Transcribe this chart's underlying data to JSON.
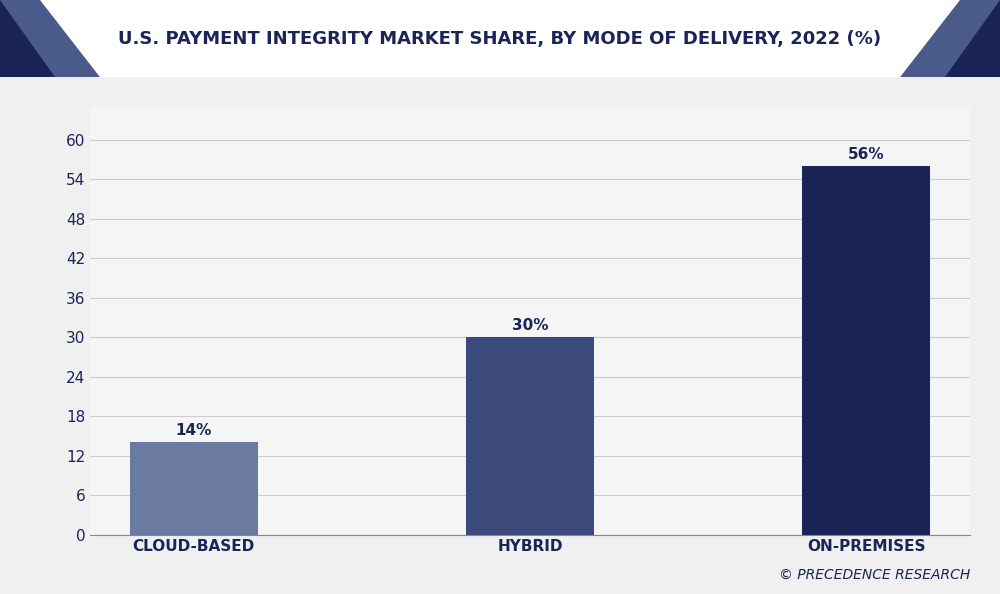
{
  "title": "U.S. PAYMENT INTEGRITY MARKET SHARE, BY MODE OF DELIVERY, 2022 (%)",
  "categories": [
    "CLOUD-BASED",
    "HYBRID",
    "ON-PREMISES"
  ],
  "values": [
    14,
    30,
    56
  ],
  "labels": [
    "14%",
    "30%",
    "56%"
  ],
  "bar_colors": [
    "#6b7aa1",
    "#3b4a7a",
    "#1a2456"
  ],
  "background_color": "#f0f0f0",
  "plot_bg_color": "#f5f5f5",
  "header_bg": "#ffffff",
  "navy": "#1a2456",
  "mid_navy": "#4a5a8a",
  "tick_label_color": "#1a2456",
  "watermark": "© PRECEDENCE RESEARCH",
  "ylim": [
    0,
    65
  ],
  "yticks": [
    0,
    6,
    12,
    18,
    24,
    30,
    36,
    42,
    48,
    54,
    60
  ],
  "title_fontsize": 13,
  "label_fontsize": 11,
  "tick_fontsize": 11,
  "watermark_fontsize": 10
}
